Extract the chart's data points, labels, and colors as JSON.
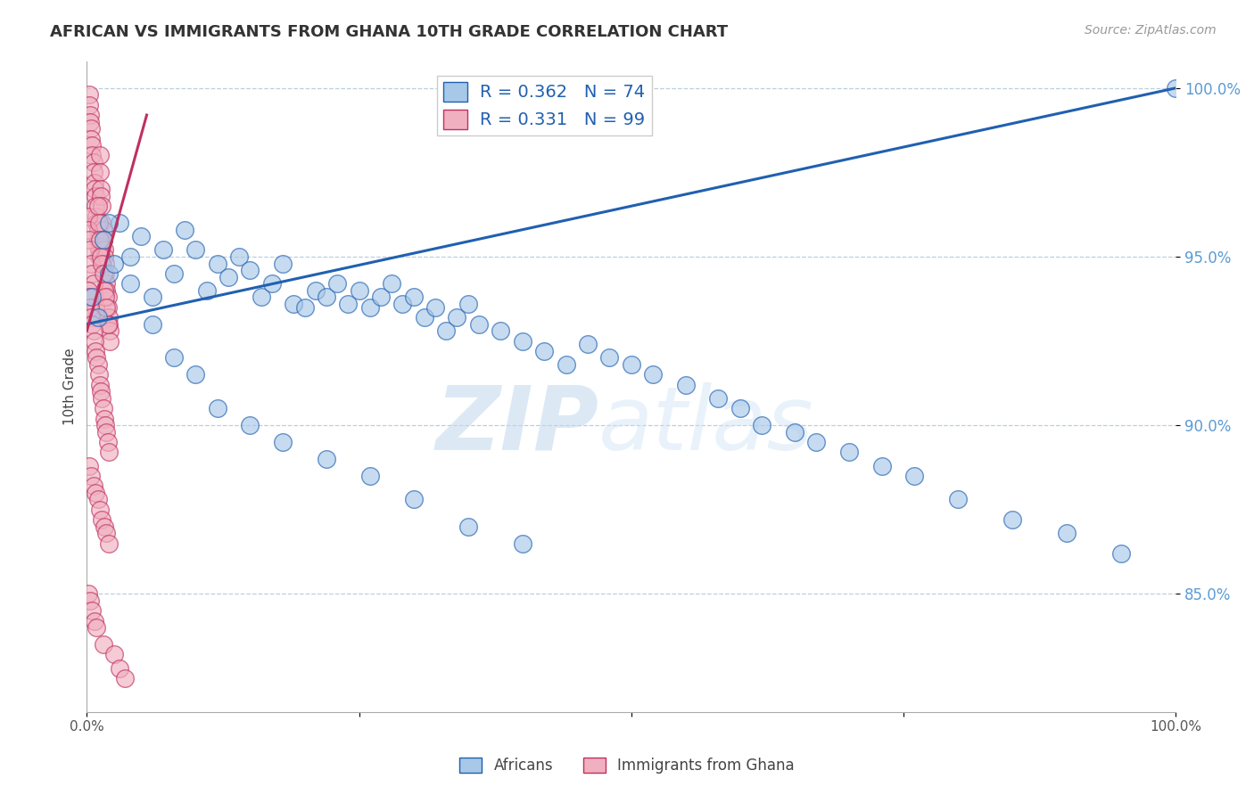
{
  "title": "AFRICAN VS IMMIGRANTS FROM GHANA 10TH GRADE CORRELATION CHART",
  "source": "Source: ZipAtlas.com",
  "ylabel": "10th Grade",
  "xlim": [
    0.0,
    1.0
  ],
  "ylim": [
    0.815,
    1.008
  ],
  "yticks": [
    0.85,
    0.9,
    0.95,
    1.0
  ],
  "ytick_labels": [
    "85.0%",
    "90.0%",
    "95.0%",
    "100.0%"
  ],
  "xticks": [
    0.0,
    0.25,
    0.5,
    0.75,
    1.0
  ],
  "xtick_labels": [
    "0.0%",
    "",
    "",
    "",
    "100.0%"
  ],
  "legend_r_blue": "R = 0.362",
  "legend_n_blue": "N = 74",
  "legend_r_pink": "R = 0.331",
  "legend_n_pink": "N = 99",
  "blue_color": "#A8C8E8",
  "pink_color": "#F0B0C0",
  "trend_blue": "#2060B0",
  "trend_pink": "#C03060",
  "watermark_zip": "ZIP",
  "watermark_atlas": "atlas",
  "africans_x": [
    0.005,
    0.01,
    0.015,
    0.02,
    0.025,
    0.03,
    0.04,
    0.05,
    0.06,
    0.07,
    0.08,
    0.09,
    0.1,
    0.11,
    0.12,
    0.13,
    0.14,
    0.15,
    0.16,
    0.17,
    0.18,
    0.19,
    0.2,
    0.21,
    0.22,
    0.23,
    0.24,
    0.25,
    0.26,
    0.27,
    0.28,
    0.29,
    0.3,
    0.31,
    0.32,
    0.33,
    0.34,
    0.35,
    0.36,
    0.38,
    0.4,
    0.42,
    0.44,
    0.46,
    0.48,
    0.5,
    0.52,
    0.55,
    0.58,
    0.6,
    0.62,
    0.65,
    0.67,
    0.7,
    0.73,
    0.76,
    0.8,
    0.85,
    0.9,
    0.95,
    0.02,
    0.04,
    0.06,
    0.08,
    0.1,
    0.12,
    0.15,
    0.18,
    0.22,
    0.26,
    0.3,
    0.35,
    0.4,
    1.0
  ],
  "africans_y": [
    0.938,
    0.932,
    0.955,
    0.945,
    0.948,
    0.96,
    0.942,
    0.956,
    0.938,
    0.952,
    0.945,
    0.958,
    0.952,
    0.94,
    0.948,
    0.944,
    0.95,
    0.946,
    0.938,
    0.942,
    0.948,
    0.936,
    0.935,
    0.94,
    0.938,
    0.942,
    0.936,
    0.94,
    0.935,
    0.938,
    0.942,
    0.936,
    0.938,
    0.932,
    0.935,
    0.928,
    0.932,
    0.936,
    0.93,
    0.928,
    0.925,
    0.922,
    0.918,
    0.924,
    0.92,
    0.918,
    0.915,
    0.912,
    0.908,
    0.905,
    0.9,
    0.898,
    0.895,
    0.892,
    0.888,
    0.885,
    0.878,
    0.872,
    0.868,
    0.862,
    0.96,
    0.95,
    0.93,
    0.92,
    0.915,
    0.905,
    0.9,
    0.895,
    0.89,
    0.885,
    0.878,
    0.87,
    0.865,
    1.0
  ],
  "ghana_x": [
    0.002,
    0.002,
    0.003,
    0.003,
    0.004,
    0.004,
    0.005,
    0.005,
    0.006,
    0.006,
    0.007,
    0.007,
    0.008,
    0.008,
    0.009,
    0.009,
    0.01,
    0.01,
    0.011,
    0.011,
    0.012,
    0.012,
    0.013,
    0.013,
    0.014,
    0.014,
    0.015,
    0.015,
    0.016,
    0.016,
    0.017,
    0.017,
    0.018,
    0.018,
    0.019,
    0.019,
    0.02,
    0.02,
    0.021,
    0.021,
    0.001,
    0.001,
    0.002,
    0.003,
    0.004,
    0.005,
    0.006,
    0.007,
    0.008,
    0.009,
    0.01,
    0.011,
    0.012,
    0.013,
    0.014,
    0.015,
    0.016,
    0.017,
    0.018,
    0.019,
    0.001,
    0.002,
    0.003,
    0.004,
    0.005,
    0.006,
    0.007,
    0.008,
    0.009,
    0.01,
    0.011,
    0.012,
    0.013,
    0.014,
    0.015,
    0.016,
    0.017,
    0.018,
    0.019,
    0.02,
    0.002,
    0.004,
    0.006,
    0.008,
    0.01,
    0.012,
    0.014,
    0.016,
    0.018,
    0.02,
    0.001,
    0.003,
    0.005,
    0.007,
    0.009,
    0.015,
    0.025,
    0.03,
    0.035
  ],
  "ghana_y": [
    0.998,
    0.995,
    0.992,
    0.99,
    0.988,
    0.985,
    0.983,
    0.98,
    0.978,
    0.975,
    0.972,
    0.97,
    0.968,
    0.965,
    0.962,
    0.96,
    0.958,
    0.955,
    0.952,
    0.95,
    0.98,
    0.975,
    0.97,
    0.968,
    0.965,
    0.96,
    0.958,
    0.955,
    0.952,
    0.95,
    0.948,
    0.945,
    0.942,
    0.94,
    0.938,
    0.935,
    0.932,
    0.93,
    0.928,
    0.925,
    0.962,
    0.958,
    0.955,
    0.952,
    0.948,
    0.945,
    0.942,
    0.938,
    0.935,
    0.932,
    0.965,
    0.96,
    0.955,
    0.95,
    0.948,
    0.945,
    0.94,
    0.938,
    0.935,
    0.93,
    0.94,
    0.938,
    0.935,
    0.932,
    0.93,
    0.928,
    0.925,
    0.922,
    0.92,
    0.918,
    0.915,
    0.912,
    0.91,
    0.908,
    0.905,
    0.902,
    0.9,
    0.898,
    0.895,
    0.892,
    0.888,
    0.885,
    0.882,
    0.88,
    0.878,
    0.875,
    0.872,
    0.87,
    0.868,
    0.865,
    0.85,
    0.848,
    0.845,
    0.842,
    0.84,
    0.835,
    0.832,
    0.828,
    0.825
  ]
}
